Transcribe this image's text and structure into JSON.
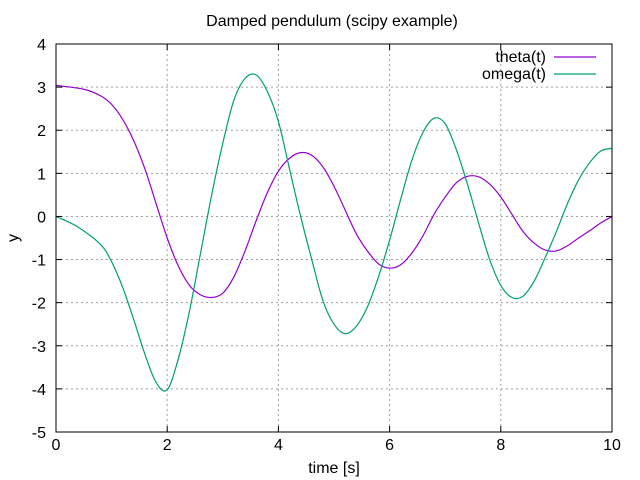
{
  "chart_data": {
    "type": "line",
    "title": "Damped pendulum (scipy example)",
    "xlabel": "time [s]",
    "ylabel": "y",
    "xlim": [
      0,
      10
    ],
    "ylim": [
      -5,
      4
    ],
    "xticks": [
      "0",
      "2",
      "4",
      "6",
      "8",
      "10"
    ],
    "yticks": [
      "-5",
      "-4",
      "-3",
      "-2",
      "-1",
      "0",
      "1",
      "2",
      "3",
      "4"
    ],
    "grid": true,
    "legend_position": "top-right",
    "series": [
      {
        "name": "theta(t)",
        "color": "#9400d3",
        "x": [
          0,
          0.5,
          0.8,
          1.0,
          1.2,
          1.4,
          1.6,
          1.8,
          2.0,
          2.2,
          2.4,
          2.6,
          2.8,
          3.0,
          3.2,
          3.4,
          3.6,
          3.8,
          4.0,
          4.2,
          4.4,
          4.6,
          4.8,
          5.0,
          5.2,
          5.4,
          5.6,
          5.8,
          6.0,
          6.2,
          6.4,
          6.6,
          6.8,
          7.0,
          7.2,
          7.4,
          7.6,
          7.8,
          8.0,
          8.2,
          8.4,
          8.6,
          8.8,
          9.0,
          9.2,
          9.4,
          9.6,
          9.8,
          10.0
        ],
        "y": [
          3.04,
          2.95,
          2.8,
          2.6,
          2.25,
          1.75,
          1.1,
          0.3,
          -0.5,
          -1.15,
          -1.6,
          -1.82,
          -1.88,
          -1.78,
          -1.4,
          -0.8,
          -0.1,
          0.55,
          1.05,
          1.35,
          1.48,
          1.42,
          1.15,
          0.7,
          0.15,
          -0.4,
          -0.8,
          -1.1,
          -1.2,
          -1.12,
          -0.85,
          -0.45,
          0.05,
          0.45,
          0.78,
          0.93,
          0.92,
          0.75,
          0.45,
          0.05,
          -0.35,
          -0.62,
          -0.78,
          -0.8,
          -0.68,
          -0.5,
          -0.33,
          -0.15,
          0.0
        ]
      },
      {
        "name": "omega(t)",
        "color": "#009e73",
        "x": [
          0,
          0.4,
          0.8,
          1.0,
          1.2,
          1.4,
          1.6,
          1.8,
          2.0,
          2.2,
          2.4,
          2.6,
          2.8,
          3.0,
          3.2,
          3.4,
          3.6,
          3.8,
          4.0,
          4.2,
          4.4,
          4.6,
          4.8,
          5.0,
          5.2,
          5.4,
          5.6,
          5.8,
          6.0,
          6.2,
          6.4,
          6.6,
          6.8,
          7.0,
          7.2,
          7.4,
          7.6,
          7.8,
          8.0,
          8.2,
          8.4,
          8.6,
          8.8,
          9.0,
          9.2,
          9.4,
          9.6,
          9.8,
          10.0
        ],
        "y": [
          0.0,
          -0.25,
          -0.65,
          -1.05,
          -1.65,
          -2.4,
          -3.2,
          -3.85,
          -4.02,
          -3.3,
          -2.2,
          -0.85,
          0.5,
          1.7,
          2.7,
          3.2,
          3.28,
          2.9,
          2.2,
          1.1,
          0.0,
          -1.0,
          -1.95,
          -2.5,
          -2.72,
          -2.55,
          -2.1,
          -1.4,
          -0.55,
          0.4,
          1.3,
          1.95,
          2.28,
          2.15,
          1.55,
          0.75,
          -0.15,
          -1.0,
          -1.6,
          -1.88,
          -1.85,
          -1.5,
          -0.95,
          -0.35,
          0.3,
          0.85,
          1.25,
          1.52,
          1.58
        ]
      }
    ]
  }
}
